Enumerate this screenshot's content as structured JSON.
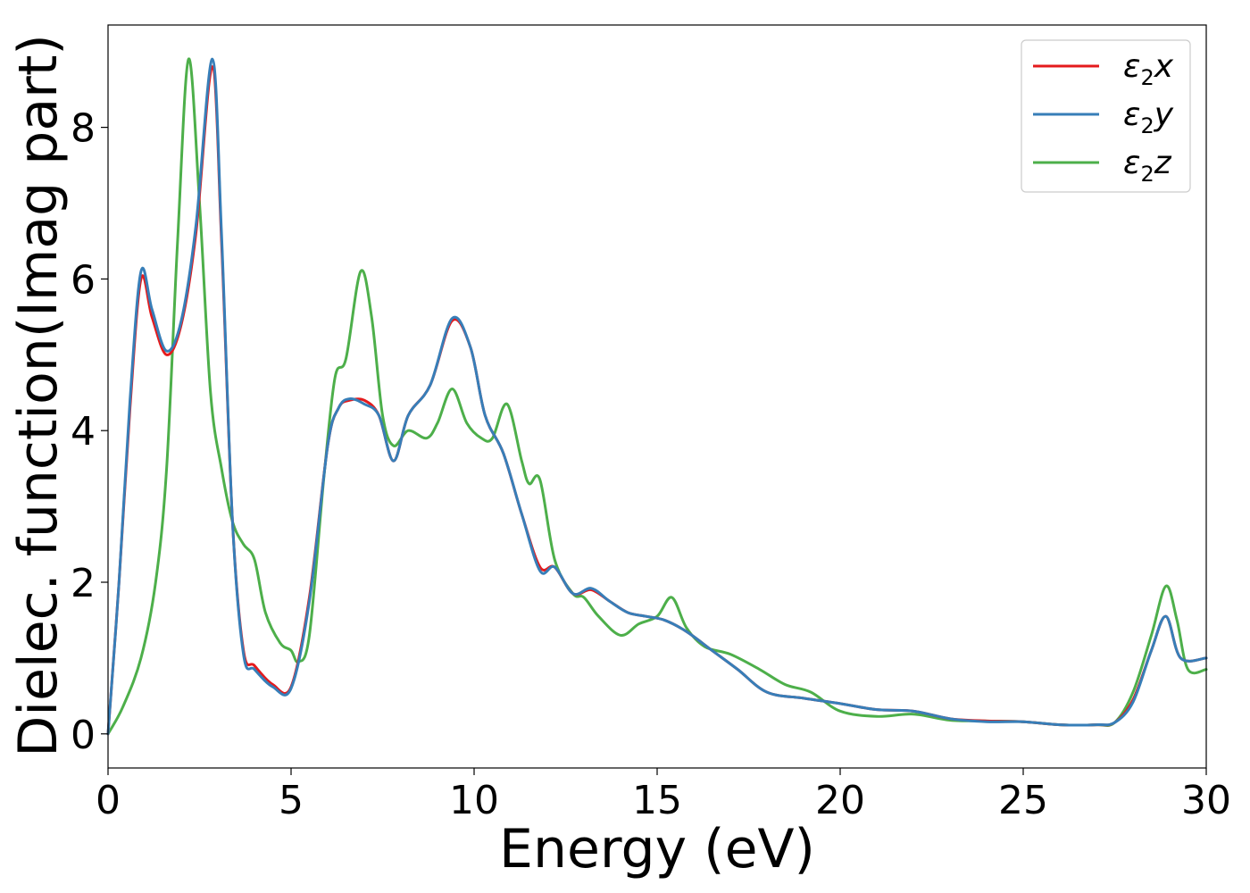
{
  "chart_data": {
    "type": "line",
    "title": "",
    "xlabel": "Energy (eV)",
    "ylabel": "Dielec. function(Imag part)",
    "xlim": [
      0,
      30
    ],
    "ylim": [
      -0.45,
      9.35
    ],
    "xticks": [
      0,
      5,
      10,
      15,
      20,
      25,
      30
    ],
    "xtick_labels": [
      "0",
      "5",
      "10",
      "15",
      "20",
      "25",
      "30"
    ],
    "yticks": [
      0,
      2,
      4,
      6,
      8
    ],
    "ytick_labels": [
      "0",
      "2",
      "4",
      "6",
      "8"
    ],
    "grid": false,
    "legend_position": "top-right",
    "series": [
      {
        "name": "ε",
        "name_sub": "2",
        "name_suffix": "x",
        "color": "#e41a1c",
        "x": [
          0,
          0.3,
          0.6,
          0.9,
          1.2,
          1.6,
          2.0,
          2.4,
          2.85,
          3.1,
          3.4,
          3.7,
          4.0,
          4.5,
          5.0,
          5.5,
          6.0,
          6.3,
          6.6,
          7.0,
          7.4,
          7.8,
          8.2,
          8.8,
          9.4,
          9.9,
          10.3,
          10.8,
          11.3,
          11.8,
          12.2,
          12.7,
          13.2,
          13.7,
          14.2,
          14.7,
          15.2,
          15.8,
          16.5,
          17.2,
          18.0,
          19.0,
          20.0,
          21.0,
          22.0,
          23.0,
          24.0,
          25.0,
          26.0,
          27.0,
          27.5,
          28.0,
          28.5,
          28.9,
          29.3,
          30.0
        ],
        "y": [
          0.0,
          2.0,
          4.3,
          6.0,
          5.5,
          5.0,
          5.4,
          6.6,
          8.8,
          6.5,
          2.8,
          1.1,
          0.9,
          0.65,
          0.62,
          1.8,
          3.8,
          4.3,
          4.4,
          4.4,
          4.2,
          3.6,
          4.2,
          4.6,
          5.45,
          5.1,
          4.2,
          3.7,
          2.9,
          2.2,
          2.2,
          1.85,
          1.9,
          1.75,
          1.6,
          1.55,
          1.5,
          1.35,
          1.1,
          0.85,
          0.55,
          0.47,
          0.4,
          0.32,
          0.3,
          0.2,
          0.17,
          0.16,
          0.12,
          0.12,
          0.15,
          0.45,
          1.1,
          1.55,
          1.0,
          1.0
        ]
      },
      {
        "name": "ε",
        "name_sub": "2",
        "name_suffix": "y",
        "color": "#377eb8",
        "x": [
          0,
          0.3,
          0.6,
          0.9,
          1.2,
          1.6,
          2.0,
          2.4,
          2.85,
          3.1,
          3.4,
          3.7,
          4.0,
          4.5,
          5.0,
          5.5,
          6.0,
          6.3,
          6.6,
          7.0,
          7.4,
          7.8,
          8.2,
          8.8,
          9.4,
          9.9,
          10.3,
          10.8,
          11.3,
          11.8,
          12.2,
          12.7,
          13.2,
          13.7,
          14.2,
          14.7,
          15.2,
          15.8,
          16.5,
          17.2,
          18.0,
          19.0,
          20.0,
          21.0,
          22.0,
          23.0,
          24.0,
          25.0,
          26.0,
          27.0,
          27.5,
          28.0,
          28.5,
          28.9,
          29.3,
          30.0
        ],
        "y": [
          0.0,
          2.0,
          4.4,
          6.1,
          5.6,
          5.05,
          5.45,
          6.7,
          8.9,
          6.6,
          2.8,
          1.05,
          0.85,
          0.62,
          0.6,
          1.75,
          3.8,
          4.3,
          4.42,
          4.35,
          4.2,
          3.6,
          4.2,
          4.6,
          5.48,
          5.1,
          4.2,
          3.7,
          2.9,
          2.15,
          2.2,
          1.85,
          1.92,
          1.75,
          1.6,
          1.55,
          1.5,
          1.35,
          1.1,
          0.85,
          0.55,
          0.47,
          0.4,
          0.32,
          0.3,
          0.2,
          0.16,
          0.16,
          0.12,
          0.12,
          0.15,
          0.42,
          1.1,
          1.55,
          1.0,
          1.0
        ]
      },
      {
        "name": "ε",
        "name_sub": "2",
        "name_suffix": "z",
        "color": "#4daf4a",
        "x": [
          0,
          0.4,
          0.9,
          1.3,
          1.6,
          1.9,
          2.2,
          2.5,
          2.8,
          3.1,
          3.4,
          3.7,
          4.0,
          4.3,
          4.7,
          5.0,
          5.2,
          5.5,
          5.9,
          6.2,
          6.5,
          6.9,
          7.2,
          7.5,
          7.8,
          8.2,
          8.7,
          9.0,
          9.4,
          9.8,
          10.2,
          10.5,
          10.9,
          11.3,
          11.5,
          11.8,
          12.2,
          12.7,
          13.0,
          13.4,
          14.0,
          14.5,
          15.0,
          15.4,
          15.8,
          16.3,
          17.0,
          17.8,
          18.5,
          19.2,
          20.0,
          21.0,
          22.0,
          23.0,
          24.0,
          25.0,
          26.0,
          27.0,
          27.5,
          28.0,
          28.5,
          28.9,
          29.2,
          29.5,
          30.0
        ],
        "y": [
          0.0,
          0.35,
          1.0,
          2.0,
          3.5,
          6.5,
          8.9,
          7.0,
          4.5,
          3.5,
          2.8,
          2.5,
          2.3,
          1.6,
          1.2,
          1.1,
          0.95,
          1.3,
          3.4,
          4.7,
          4.95,
          6.1,
          5.5,
          4.2,
          3.8,
          4.0,
          3.9,
          4.1,
          4.55,
          4.1,
          3.9,
          3.9,
          4.35,
          3.6,
          3.3,
          3.35,
          2.3,
          1.85,
          1.8,
          1.55,
          1.3,
          1.45,
          1.55,
          1.8,
          1.4,
          1.15,
          1.05,
          0.85,
          0.65,
          0.55,
          0.3,
          0.23,
          0.26,
          0.18,
          0.17,
          0.16,
          0.12,
          0.12,
          0.15,
          0.55,
          1.3,
          1.95,
          1.5,
          0.85,
          0.85
        ]
      }
    ]
  }
}
